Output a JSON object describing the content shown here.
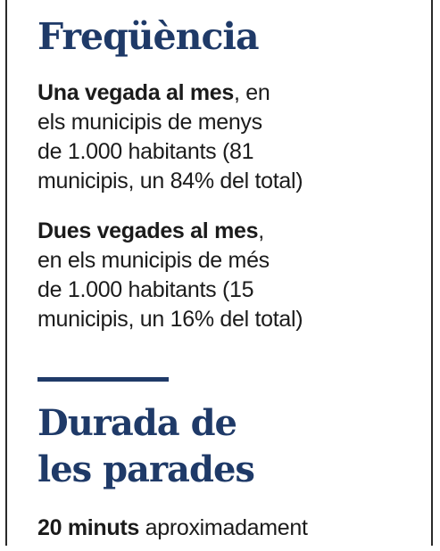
{
  "sections": [
    {
      "heading": "Freqüència",
      "items": [
        {
          "bold": "Una vegada al mes",
          "text": ", en\nels municipis de menys\nde 1.000 habitants (81\nmunicipis, un 84% del total)"
        },
        {
          "bold": "Dues vegades al mes",
          "text": ",\nen els municipis de més\nde 1.000 habitants (15\nmunicipis, un 16% del total)"
        }
      ]
    },
    {
      "heading": "Durada de\nles parades",
      "items": [
        {
          "bold": "20 minuts",
          "text": " aproximadament"
        }
      ]
    }
  ],
  "colors": {
    "heading": "#1f3a68",
    "divider": "#1f3a68",
    "body_text": "#1b1b1b",
    "frame_rule": "#2a2a2a"
  }
}
